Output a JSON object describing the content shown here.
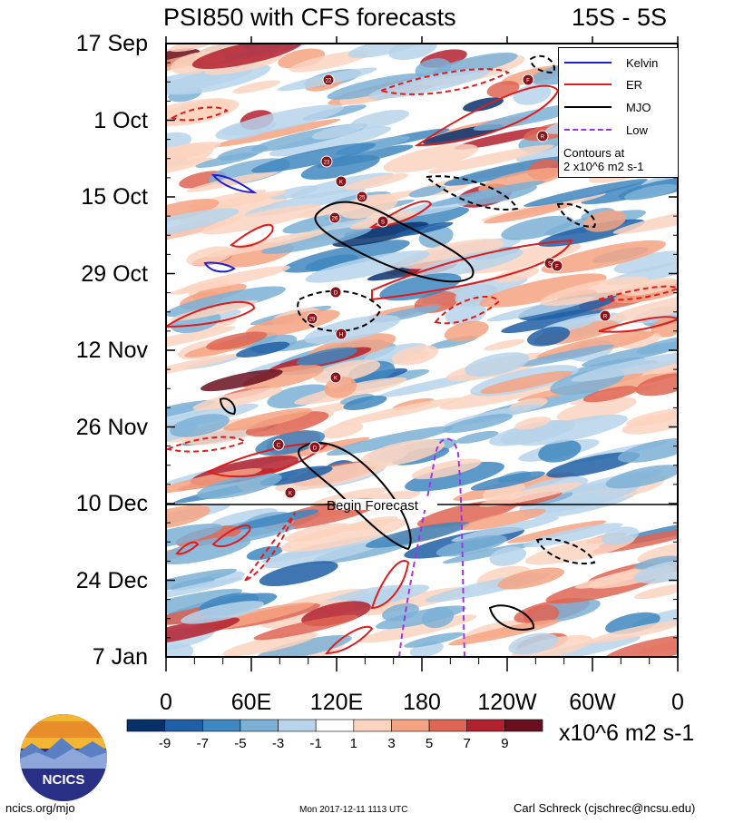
{
  "title": "PSI850 with CFS forecasts",
  "region": "15S - 5S",
  "y_axis_dates": [
    "17 Sep",
    "1 Oct",
    "15 Oct",
    "29 Oct",
    "12 Nov",
    "26 Nov",
    "10 Dec",
    "24 Dec",
    "7 Jan"
  ],
  "x_axis_longitudes": [
    "0",
    "60E",
    "120E",
    "180",
    "120W",
    "60W",
    "0"
  ],
  "forecast_label": "Begin Forecast",
  "legend": {
    "items": [
      {
        "label": "Kelvin",
        "color": "#1f1fd1"
      },
      {
        "label": "ER",
        "color": "#e01b1b"
      },
      {
        "label": "MJO",
        "color": "#000000"
      },
      {
        "label": "Low",
        "color": "#a133e6"
      }
    ],
    "note_line1": "Contours at",
    "note_line2": "2 x10^6 m2 s-1"
  },
  "colorbar": {
    "labels": [
      "-9",
      "-7",
      "-5",
      "-3",
      "-1",
      "1",
      "3",
      "5",
      "7",
      "9"
    ],
    "colors": [
      "#08306b",
      "#1f5fa6",
      "#3f87c0",
      "#7cb0d6",
      "#b7d4ea",
      "#ffffff",
      "#fbd3bf",
      "#f4a383",
      "#df6554",
      "#b3202e",
      "#6a0f1f"
    ],
    "units": "x10^6 m2 s-1"
  },
  "tc_markers": [
    "22",
    "F",
    "R",
    "23",
    "K",
    "25",
    "26",
    "S",
    "S",
    "F",
    "D",
    "29",
    "H",
    "R",
    "K",
    "C",
    "D",
    "K"
  ],
  "footer": {
    "site": "ncics.org/mjo",
    "timestamp": "Mon 2017-12-11 1113 UTC",
    "author": "Carl Schreck (cjschrec@ncsu.edu)",
    "logo_text": "NCICS"
  },
  "chart_data": {
    "type": "heatmap",
    "title": "PSI850 with CFS forecasts",
    "subtitle": "15S - 5S",
    "x_range_lon": [
      0,
      360
    ],
    "x_ticks": [
      "0",
      "60E",
      "120E",
      "180",
      "120W",
      "60W",
      "0"
    ],
    "y_range": [
      "2017-09-17",
      "2018-01-07"
    ],
    "y_ticks": [
      "17 Sep",
      "1 Oct",
      "15 Oct",
      "29 Oct",
      "12 Nov",
      "26 Nov",
      "10 Dec",
      "24 Dec",
      "7 Jan"
    ],
    "forecast_start": "2017-12-10",
    "color_levels": [
      -9,
      -7,
      -5,
      -3,
      -1,
      1,
      3,
      5,
      7,
      9
    ],
    "units": "x10^6 m2 s-1",
    "contour_interval": "2 x10^6 m2 s-1",
    "legend_placement": "top-right",
    "series": [
      {
        "name": "Kelvin"
      },
      {
        "name": "ER"
      },
      {
        "name": "MJO"
      },
      {
        "name": "Low"
      }
    ]
  }
}
